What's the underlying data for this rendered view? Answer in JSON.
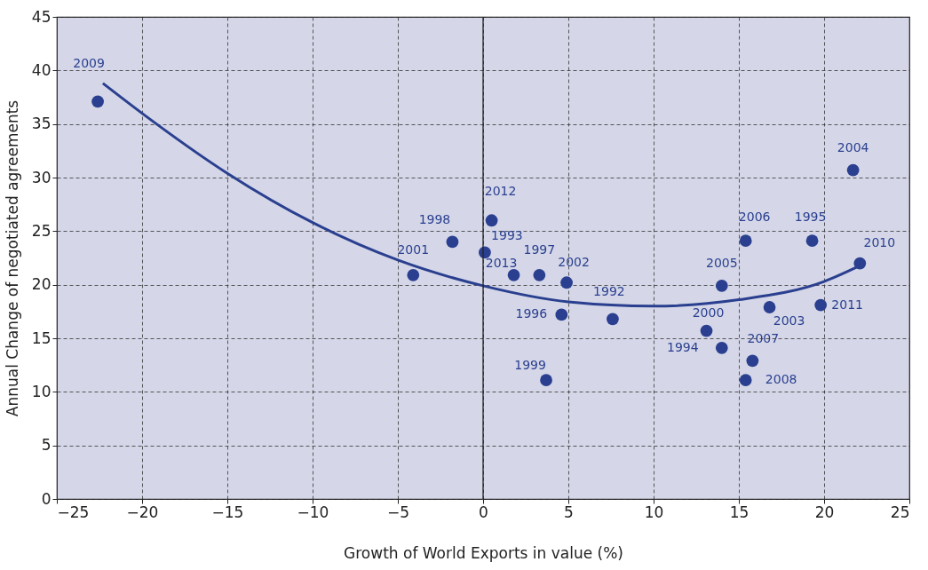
{
  "chart_data": {
    "type": "scatter",
    "xlabel": "Growth of World Exports in value (%)",
    "ylabel": "Annual Change of negotiated agreements",
    "xlim": [
      -25,
      25
    ],
    "xticks": [
      -25,
      -20,
      -15,
      -10,
      -5,
      0,
      5,
      10,
      15,
      20,
      25
    ],
    "ylim": [
      0,
      45
    ],
    "yticks": [
      0,
      5,
      10,
      15,
      20,
      25,
      30,
      35,
      40,
      45
    ],
    "grid": true,
    "marker": "circle",
    "ref_lines": [
      {
        "axis": "x",
        "value": 0,
        "color": "#222222"
      }
    ],
    "series": [
      {
        "type": "scatter",
        "color": "#2a3f8f",
        "x": [
          -22.6,
          -4.1,
          -1.8,
          0.1,
          0.5,
          1.8,
          3.3,
          4.9,
          4.6,
          3.7,
          7.6,
          13.1,
          14.0,
          14.0,
          15.4,
          15.8,
          15.4,
          16.8,
          19.3,
          19.8,
          21.7,
          22.1
        ],
        "values": [
          37.1,
          20.9,
          24.0,
          23.0,
          26.0,
          20.9,
          20.9,
          20.2,
          17.2,
          11.1,
          16.8,
          15.7,
          14.1,
          19.9,
          24.1,
          12.9,
          11.1,
          17.9,
          24.1,
          18.1,
          30.7,
          22.0
        ]
      },
      {
        "type": "line",
        "color": "#2a3f8f",
        "line_style": "solid",
        "marker": "none",
        "x": [
          -22.3,
          -20,
          -15,
          -10,
          -5,
          0,
          5,
          10,
          15,
          20,
          22
        ],
        "values": [
          38.8,
          36.0,
          30.4,
          25.8,
          22.3,
          19.9,
          18.4,
          18.0,
          18.6,
          20.3,
          21.7
        ]
      }
    ],
    "annotations": [
      {
        "text": "2009",
        "x": -22.6,
        "y": 37.1
      },
      {
        "text": "2001",
        "x": -4.1,
        "y": 20.9
      },
      {
        "text": "1998",
        "x": -1.8,
        "y": 24.0
      },
      {
        "text": "1993",
        "x": 0.1,
        "y": 23.0
      },
      {
        "text": "2012",
        "x": 0.5,
        "y": 26.0
      },
      {
        "text": "2013",
        "x": 1.8,
        "y": 20.9
      },
      {
        "text": "1997",
        "x": 3.3,
        "y": 20.9
      },
      {
        "text": "2002",
        "x": 4.9,
        "y": 20.2
      },
      {
        "text": "1996",
        "x": 4.6,
        "y": 17.2
      },
      {
        "text": "1999",
        "x": 3.7,
        "y": 11.1
      },
      {
        "text": "1992",
        "x": 7.6,
        "y": 16.8
      },
      {
        "text": "2000",
        "x": 13.1,
        "y": 15.7
      },
      {
        "text": "1994",
        "x": 14.0,
        "y": 14.1
      },
      {
        "text": "2005",
        "x": 14.0,
        "y": 19.9
      },
      {
        "text": "2006",
        "x": 15.4,
        "y": 24.1
      },
      {
        "text": "2007",
        "x": 15.8,
        "y": 12.9
      },
      {
        "text": "2008",
        "x": 15.4,
        "y": 11.1
      },
      {
        "text": "2003",
        "x": 16.8,
        "y": 17.9
      },
      {
        "text": "1995",
        "x": 19.3,
        "y": 24.1
      },
      {
        "text": "2011",
        "x": 19.8,
        "y": 18.1
      },
      {
        "text": "2004",
        "x": 21.7,
        "y": 30.7
      },
      {
        "text": "2010",
        "x": 22.1,
        "y": 22.0
      }
    ]
  }
}
